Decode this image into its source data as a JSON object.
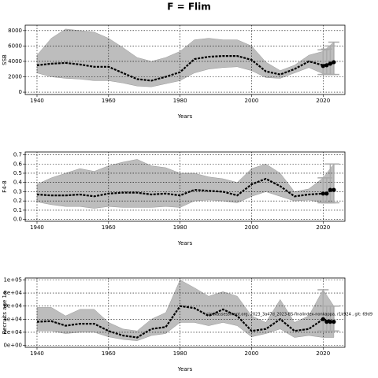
{
  "title": "F = Flim",
  "chart_data": [
    {
      "type": "line",
      "ylabel": "SSB",
      "xlabel": "Years",
      "x": [
        1940,
        1944,
        1948,
        1952,
        1956,
        1960,
        1964,
        1968,
        1972,
        1976,
        1980,
        1984,
        1988,
        1992,
        1996,
        2000,
        2004,
        2008,
        2012,
        2016,
        2020,
        2023
      ],
      "values": [
        3500,
        3700,
        3800,
        3600,
        3300,
        3300,
        2500,
        1700,
        1500,
        2000,
        2600,
        4300,
        4600,
        4700,
        4700,
        4200,
        2700,
        2300,
        3000,
        4000,
        3500,
        3800
      ],
      "upper": [
        4800,
        7000,
        8200,
        8000,
        7800,
        7000,
        5800,
        4500,
        4000,
        4500,
        5300,
        6800,
        7000,
        6800,
        6800,
        6000,
        3900,
        2800,
        3500,
        4800,
        5300,
        6500
      ],
      "lower": [
        2500,
        2000,
        1800,
        1700,
        1500,
        1500,
        1200,
        800,
        700,
        1100,
        1500,
        2500,
        3000,
        3200,
        3300,
        2800,
        1900,
        1800,
        2500,
        3200,
        2400,
        2300
      ],
      "points": {
        "x": [
          2020,
          2021,
          2022,
          2023
        ],
        "values": [
          3400,
          3500,
          3700,
          3900
        ],
        "lower": [
          2300,
          2300,
          2300,
          2300
        ],
        "upper": [
          5500,
          5600,
          6000,
          6500
        ]
      },
      "xlim": [
        1936.7,
        2026.1
      ],
      "xticks": [
        1940,
        1960,
        1980,
        2000,
        2020
      ],
      "ylim": [
        -300,
        8700
      ],
      "yticks": [
        0,
        2000,
        4000,
        6000,
        8000
      ],
      "grid": true
    },
    {
      "type": "line",
      "ylabel": "F4-8",
      "xlabel": "Years",
      "x": [
        1940,
        1944,
        1948,
        1952,
        1956,
        1960,
        1964,
        1968,
        1972,
        1976,
        1980,
        1984,
        1988,
        1992,
        1996,
        2000,
        2004,
        2008,
        2012,
        2016,
        2020,
        2023
      ],
      "values": [
        0.27,
        0.26,
        0.26,
        0.27,
        0.25,
        0.28,
        0.29,
        0.29,
        0.27,
        0.28,
        0.26,
        0.32,
        0.31,
        0.3,
        0.26,
        0.38,
        0.44,
        0.36,
        0.25,
        0.27,
        0.28,
        0.32
      ],
      "upper": [
        0.38,
        0.45,
        0.5,
        0.55,
        0.52,
        0.58,
        0.62,
        0.65,
        0.58,
        0.56,
        0.5,
        0.5,
        0.46,
        0.44,
        0.4,
        0.55,
        0.6,
        0.5,
        0.3,
        0.33,
        0.45,
        0.6
      ],
      "lower": [
        0.19,
        0.16,
        0.14,
        0.14,
        0.12,
        0.14,
        0.13,
        0.13,
        0.13,
        0.14,
        0.13,
        0.2,
        0.21,
        0.2,
        0.18,
        0.25,
        0.3,
        0.25,
        0.2,
        0.21,
        0.18,
        0.18
      ],
      "points": {
        "x": [
          2020,
          2021,
          2022,
          2023
        ],
        "values": [
          0.28,
          0.28,
          0.32,
          0.32
        ],
        "lower": [
          0.18,
          0.18,
          0.18,
          0.18
        ],
        "upper": [
          0.45,
          0.45,
          0.6,
          0.6
        ]
      },
      "xlim": [
        1936.7,
        2026.1
      ],
      "xticks": [
        1940,
        1960,
        1980,
        2000,
        2020
      ],
      "ylim": [
        -0.02,
        0.73
      ],
      "yticks": [
        {
          "value": 0,
          "label": "0.0"
        },
        0.1,
        0.2,
        0.3,
        0.4,
        0.5,
        0.6,
        0.7
      ],
      "grid": true
    },
    {
      "type": "line",
      "ylabel": "Recruits age 1a",
      "xlabel": "Years",
      "annotation": "stockassessment.org, 2023_3a47d_2023-BS-finalindex-nonkappa, r1k924 , git: 69d9",
      "x": [
        1940,
        1944,
        1948,
        1952,
        1956,
        1960,
        1964,
        1968,
        1972,
        1976,
        1980,
        1984,
        1988,
        1992,
        1996,
        2000,
        2004,
        2008,
        2012,
        2016,
        2020,
        2023
      ],
      "values": [
        36000,
        37000,
        30000,
        33000,
        33000,
        22000,
        15000,
        12000,
        25000,
        28000,
        60000,
        57000,
        45000,
        55000,
        45000,
        22000,
        25000,
        40000,
        22000,
        25000,
        40000,
        36000
      ],
      "upper": [
        58000,
        58000,
        45000,
        55000,
        55000,
        35000,
        25000,
        22000,
        40000,
        50000,
        100000,
        88000,
        75000,
        82000,
        75000,
        45000,
        35000,
        70000,
        35000,
        45000,
        85000,
        60000
      ],
      "lower": [
        22000,
        22000,
        18000,
        20000,
        20000,
        13000,
        9000,
        7000,
        15000,
        18000,
        35000,
        35000,
        30000,
        35000,
        30000,
        13000,
        18000,
        25000,
        12000,
        15000,
        12000,
        12000
      ],
      "points": {
        "x": [
          2020,
          2021,
          2022,
          2023
        ],
        "values": [
          40000,
          36000,
          36000,
          36000
        ],
        "lower": [
          22000,
          22000,
          22000,
          22000
        ],
        "upper": [
          85000,
          60000,
          60000,
          60000
        ]
      },
      "xlim": [
        1936.7,
        2026.1
      ],
      "xticks": [
        1940,
        1960,
        1980,
        2000,
        2020
      ],
      "ylim": [
        -3000,
        103000
      ],
      "yticks": [
        {
          "value": 0,
          "label": "0e+00"
        },
        {
          "value": 20000,
          "label": "2e+04"
        },
        {
          "value": 40000,
          "label": "4e+04"
        },
        {
          "value": 60000,
          "label": "6e+04"
        },
        {
          "value": 80000,
          "label": "8e+04"
        },
        {
          "value": 100000,
          "label": "1e+05"
        }
      ],
      "grid": true
    }
  ]
}
